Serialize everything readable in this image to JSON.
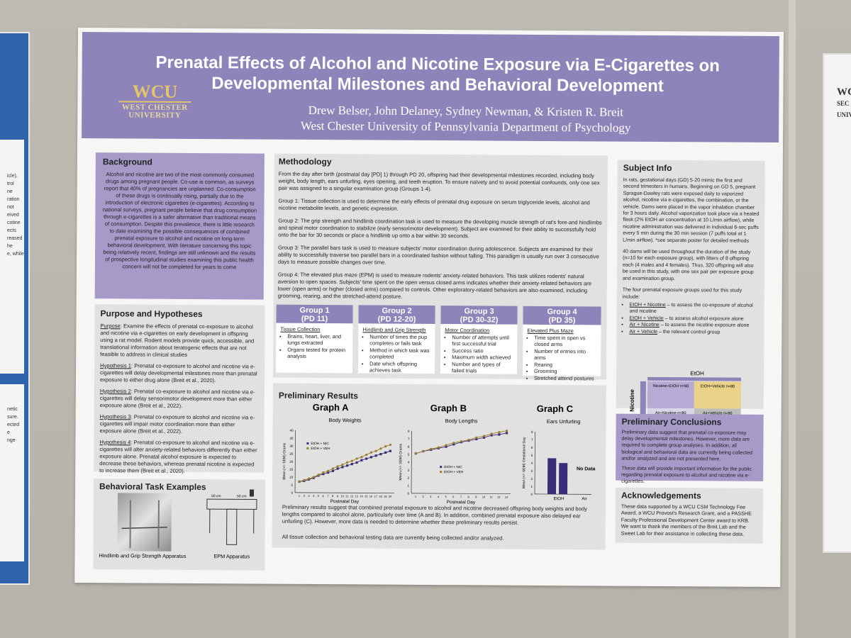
{
  "poster": {
    "title_line1": "Prenatal Effects of Alcohol and Nicotine Exposure via E-Cigarettes on",
    "title_line2": "Developmental Milestones and Behavioral Development",
    "authors": "Drew Belser, John Delaney, Sydney Newman, & Kristen R. Breit",
    "affiliation": "West Chester University of Pennsylvania Department of Psychology",
    "logo_big": "WCU",
    "logo_line1": "WEST CHESTER",
    "logo_line2": "UNIVERSITY"
  },
  "background": {
    "heading": "Background",
    "text": "Alcohol and nicotine are two of the most commonly consumed drugs among pregnant people. Co-use is common, as surveys report that 40% of pregnancies are unplanned. Co-consumption of these drugs is continually rising, partially due to the introduction of electronic cigarettes (e-cigarettes). According to national surveys, pregnant people believe that drug consumption through e-cigarettes is a safer alternative than traditional means of consumption. Despite this prevalence, there is little research to date examining the possible consequences of combined prenatal exposure to alcohol and nicotine on long-term behavioral development. With literature concerning this topic being relatively recent, findings are still unknown and the results of prospective longitudinal studies examining this public health concern will not be completed for years to come"
  },
  "purpose": {
    "heading": "Purpose and Hypotheses",
    "purpose_label": "Purpose",
    "purpose_text": ": Examine the effects of prenatal co-exposure to alcohol and nicotine via e-cigarettes on early development in offspring using a rat model. Rodent models provide quick, accessible, and translational information about teratogenic effects that are not feasible to address in clinical studies",
    "h1_label": "Hypothesis 1",
    "h1_text": ": Prenatal co-exposure to alcohol and nicotine via e-cigarettes will delay developmental milestones more than prenatal exposure to either drug alone (Breit et al., 2020).",
    "h2_label": "Hypothesis 2",
    "h2_text": ": Prenatal co-exposure to alcohol and nicotine via e-cigarettes will delay sensorimotor development more than either exposure alone (Breit et al., 2022).",
    "h3_label": "Hypothesis 3",
    "h3_text": ": Prenatal co-exposure to alcohol and nicotine via e-cigarettes will impair motor coordination more than either exposure alone (Breit et al., 2022).",
    "h4_label": "Hypothesis 4",
    "h4_text": ": Prenatal co-exposure to alcohol and nicotine via e-cigarettes will alter anxiety-related behaviors differently than either exposure alone. Prenatal alcohol exposure is expected to decrease these behaviors, whereas prenatal nicotine is expected to increase them (Breit et al., 2020)."
  },
  "behavioral": {
    "heading": "Behavioral Task Examples",
    "caption1": "Hindlimb and Grip Strength Apparatus",
    "caption2": "EPM Apparatus",
    "dim_label": "50 cm"
  },
  "methodology": {
    "heading": "Methodology",
    "intro": "From the day after birth (postnatal day [PD] 1) through PD 20, offspring had their developmental milestones recorded, including body weight, body length, ears unfurling, eyes opening, and teeth eruption. To ensure naïvety and to avoid potential confounds, only one sex pair was assigned to a singular examination group (Groups 1-4).",
    "g1": "Group 1: Tissue collection is used to determine the early effects of prenatal drug exposure on serum triglyceride levels, alcohol and nicotine metabolite levels, and genetic expression.",
    "g2": "Group 2: The grip strength and hindlimb coordination task is used to measure the developing muscle strength of rat's fore-and hindlimbs and spinal motor coordination to stabilize (early sensorimotor development). Subject are examined for their ability to successfully hold onto the bar for 30 seconds or place a hindlimb up onto a bar within 30 seconds.",
    "g3": "Group 3: The parallel bars task is used to measure subjects' motor coordination during adolescence. Subjects are examined for their ability to successfully traverse two parallel bars in a coordinated fashion without falling. This paradigm is usually run over 3 consecutive days to measure possible changes over time.",
    "g4": "Group 4: The elevated plus maze (EPM) is used to measure rodents' anxiety-related behaviors. This task utilizes rodents' natural aversion to open spaces. Subjects' time spent on the open versus closed arms indicates whether their anxiety-related behaviors are lower (open arms) or higher (closed arms) compared to controls. Other exploratory-related behaviors are also examined, including grooming, rearing, and the stretched-attend posture.",
    "groups": [
      {
        "name": "Group 1",
        "pd": "(PD 11)",
        "task": "Tissue Collection",
        "items": [
          "Brains, heart, liver, and lungs extracted",
          "Organs tested for protein analysis"
        ]
      },
      {
        "name": "Group 2",
        "pd": "(PD 12-20)",
        "task": "Hindlimb and Grip Strength",
        "items": [
          "Number of times the pup completes or fails task",
          "Method in which task was completed",
          "Date which offspring achieves task"
        ]
      },
      {
        "name": "Group 3",
        "pd": "(PD 30-32)",
        "task": "Motor Coordination",
        "items": [
          "Number of attempts until first successful trial",
          "Success ratio",
          "Maximum width achieved",
          "Number and types of failed trials"
        ]
      },
      {
        "name": "Group 4",
        "pd": "(PD 35)",
        "task": "Elevated Plus Maze",
        "items": [
          "Time spent in open vs closed arms",
          "Number of entries into arms",
          "Rearing",
          "Grooming",
          "Stretched attend postures"
        ]
      }
    ]
  },
  "results": {
    "heading": "Preliminary Results",
    "text1": "Preliminary results suggest that combined prenatal exposure to alcohol and nicotine decreased offspring body weights and body lengths compared to alcohol alone, particularly over time (A and B). In addition, combined prenatal exposure also delayed ear unfurling (C). However, more data is needed to determine whether these preliminary results persist.",
    "text2": "All tissue collection and behavioral testing data are currently being collected and/or analyzed."
  },
  "chart_data": [
    {
      "type": "line",
      "label": "Graph A",
      "title": "Body Weights",
      "xlabel": "Postnatal Day",
      "ylabel": "Mean (+/- SEM) Grams",
      "x": [
        1,
        2,
        3,
        4,
        5,
        6,
        7,
        8,
        9,
        10,
        11,
        12,
        13,
        14,
        15,
        16,
        17,
        18,
        19,
        20
      ],
      "ylim": [
        0,
        40
      ],
      "yticks": [
        0,
        5,
        10,
        15,
        20,
        25,
        30,
        35,
        40
      ],
      "series": [
        {
          "name": "EtOH + NIC",
          "color": "#3b2d77",
          "values": [
            7,
            7.5,
            8.5,
            9.5,
            11,
            12,
            13,
            14,
            15.5,
            16.5,
            17.5,
            18.5,
            19.5,
            21,
            22,
            23,
            24,
            25,
            26,
            27
          ]
        },
        {
          "name": "EtOH + VEH",
          "color": "#9a7e2b",
          "values": [
            7,
            8,
            9,
            10,
            11.5,
            13,
            14,
            15.5,
            17,
            18,
            19.5,
            20.5,
            22,
            23,
            24.5,
            26,
            27,
            28.5,
            30,
            31
          ]
        }
      ]
    },
    {
      "type": "line",
      "label": "Graph B",
      "title": "Body Lengths",
      "xlabel": "Postnatal Day",
      "ylabel": "Mean (+/- SEM) Grams",
      "x": [
        1,
        2,
        3,
        4,
        5,
        6,
        7,
        8,
        9,
        10,
        11,
        12,
        13
      ],
      "ylim": [
        0,
        8
      ],
      "yticks": [
        0,
        1,
        2,
        3,
        4,
        5,
        6,
        7,
        8
      ],
      "series": [
        {
          "name": "EtOH + NIC",
          "color": "#3b2d77",
          "values": [
            5.1,
            5.4,
            5.6,
            5.8,
            6.0,
            6.3,
            6.6,
            6.8,
            7.0,
            7.2,
            7.5,
            7.6,
            7.8
          ]
        },
        {
          "name": "EtOH + VEH",
          "color": "#9a7e2b",
          "values": [
            5.1,
            5.4,
            5.7,
            5.9,
            6.2,
            6.5,
            6.7,
            6.9,
            7.2,
            7.4,
            7.7,
            7.9,
            8.1
          ]
        }
      ]
    },
    {
      "type": "bar",
      "label": "Graph C",
      "title": "Ears Unfurling",
      "xlabel": "",
      "ylabel": "Mean (+/- SEM) Gestational Day",
      "categories": [
        "EtOH",
        "Air"
      ],
      "ylim": [
        0,
        8
      ],
      "yticks": [
        0,
        1,
        2,
        3,
        4,
        5,
        6,
        7,
        8
      ],
      "bars": [
        {
          "name": "EtOH + NIC",
          "value": 4.6
        },
        {
          "name": "EtOH + VEH",
          "value": 4.0
        }
      ],
      "annotation": "No Data"
    }
  ],
  "subject": {
    "heading": "Subject Info",
    "p1": "In rats, gestational days (GD) 5-20 mimic the first and second trimesters in humans. Beginning on GD 5, pregnant Sprague-Dawley rats were exposed daily to vaporized alcohol, nicotine via e-cigarettes, the combination, or the vehicle. Dams were placed in the vapor inhalation chamber for 3 hours daily. Alcohol vaporization took place via a heated flask (2% EtOH air concentration at 10 L/min airflow), while nicotine administration was delivered in individual 6-sec puffs every 5 min during the 30 min session (7 puffs total at 1 L/min airflow). *see separate poster for detailed methods",
    "p2": "40 dams will be used throughout the duration of the study (n=10 for each exposure group), with litters of 8 offspring each (4 males and 4 females). Thus, 320 offspring will also be used in this study, with one sex pair per exposure group and examination group.",
    "p3": "The four prenatal exposure groups used for this study include:",
    "list": [
      {
        "label": "EtOH + Nicotine",
        "text": " – to assess the co-exposure of alcohol and nicotine"
      },
      {
        "label": "EtOH + Vehicle",
        "text": " – to assess alcohol exposure alone"
      },
      {
        "label": "Air + Nicotine",
        "text": " – to assess the nicotine exposure alone"
      },
      {
        "label": "Air + Vehicle",
        "text": " – the relevant control group"
      }
    ],
    "grid_top": "EtOH",
    "grid_side": "Nicotine",
    "cells": [
      "Nicotine+EtOH n=80",
      "EtOH+Vehicle n=80",
      "Air+Nicotine n=80",
      "Air+Vehicle n=80"
    ]
  },
  "conclusions": {
    "heading": "Preliminary Conclusions",
    "p1": "Preliminary data suggest that prenatal co-exposure may delay developmental milestones. However, more data are required to complete group analyses. In addition, all biological and behavioral data are currently being collected and/or analyzed and are not presented here.",
    "p2": "These data will provide important information for the public regarding prenatal exposure to alcohol and nicotine via e-cigarettes."
  },
  "acknowledgements": {
    "heading": "Acknowledgements",
    "text": "These data supported by a WCU CSM Technology Fee Award, a WCU Provost's Research Grant, and a PASSHE Faculty Professional Development Center award to KRB. We want to thank the members of the Breit Lab and the Sweet Lab for their assistance in collecting these data."
  },
  "left_poster": {
    "lines": [
      "icle),",
      "trol",
      "ne",
      "",
      "ration",
      "not",
      "",
      "eived",
      "cotine",
      "ects",
      "reased",
      "",
      "",
      "he",
      "e, while"
    ],
    "lines2": [
      "",
      "netic",
      "",
      "sure.",
      "ected",
      "e",
      "",
      "nge"
    ]
  },
  "right_poster": {
    "lines": [
      "WCU",
      "SEC",
      "UNIV"
    ]
  },
  "colors": {
    "header": "#8f84ba",
    "accent_purple": "#a69ac9",
    "panel_grey": "#e1e1e0",
    "gold": "#e3c56a"
  }
}
